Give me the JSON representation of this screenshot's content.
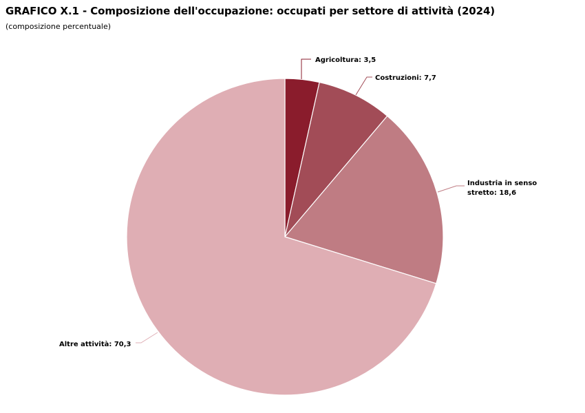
{
  "header": {
    "title": "GRAFICO X.1 - Composizione dell'occupazione: occupati per settore di attività (2024)",
    "subtitle": "(composizione percentuale)"
  },
  "chart_data": {
    "type": "pie",
    "title": "GRAFICO X.1 - Composizione dell'occupazione: occupati per settore di attività (2024)",
    "subtitle": "(composizione percentuale)",
    "slices": [
      {
        "label": "Agricoltura",
        "value": 3.5,
        "display": "Agricoltura: 3,5",
        "color": "#8a1c2c"
      },
      {
        "label": "Costruzioni",
        "value": 7.7,
        "display": "Costruzioni: 7,7",
        "color": "#a24c57"
      },
      {
        "label": "Industria in senso stretto",
        "value": 18.6,
        "display_lines": [
          "Industria in senso",
          "stretto: 18,6"
        ],
        "color": "#bf7c83"
      },
      {
        "label": "Altre attività",
        "value": 70.3,
        "display": "Altre attività: 70,3",
        "color": "#dfaeb4"
      }
    ]
  }
}
